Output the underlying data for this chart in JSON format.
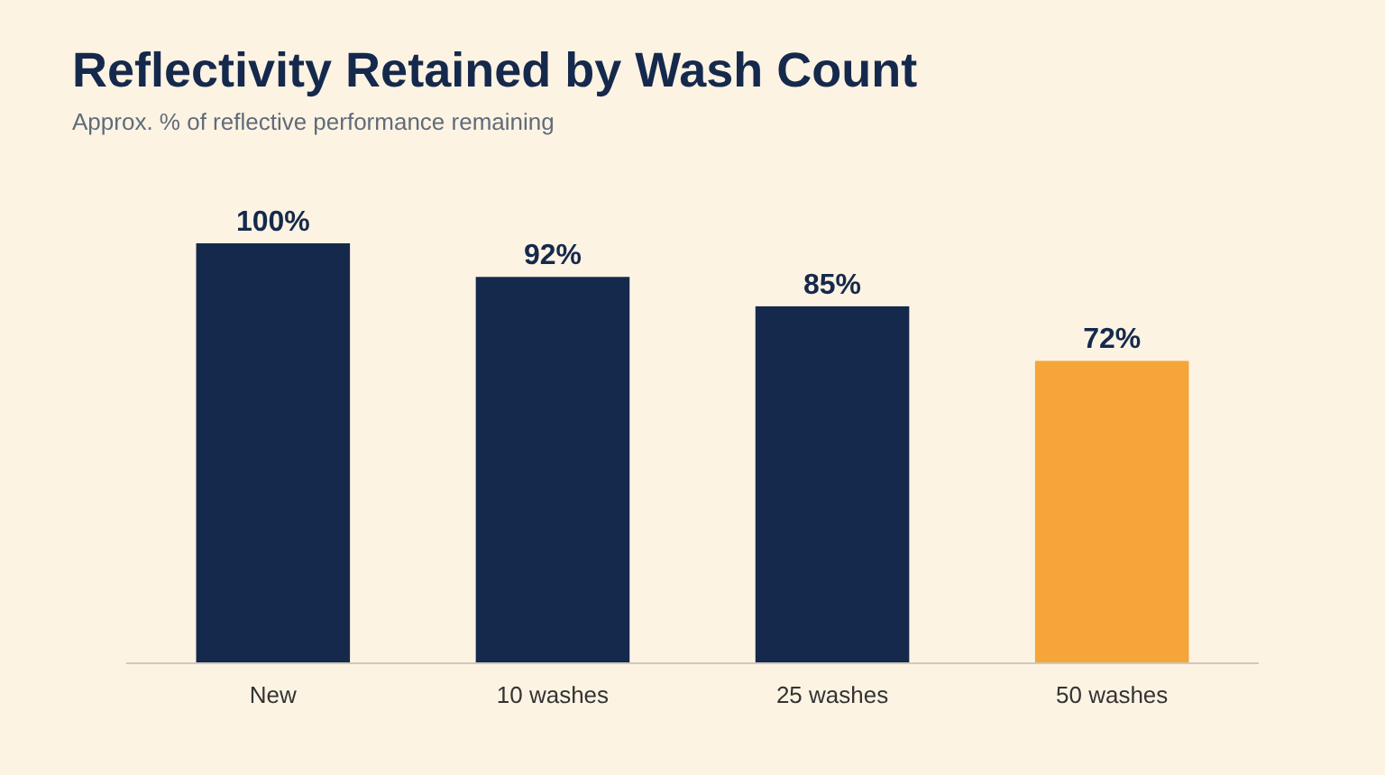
{
  "chart_data": {
    "type": "bar",
    "title": "Reflectivity Retained by Wash Count",
    "subtitle": "Approx. % of reflective performance remaining",
    "categories": [
      "New",
      "10 washes",
      "25 washes",
      "50 washes"
    ],
    "values": [
      100,
      92,
      85,
      72
    ],
    "colors": [
      "#15294c",
      "#15294c",
      "#15294c",
      "#f5a53a"
    ],
    "value_labels": [
      "100%",
      "92%",
      "85%",
      "72%"
    ]
  }
}
